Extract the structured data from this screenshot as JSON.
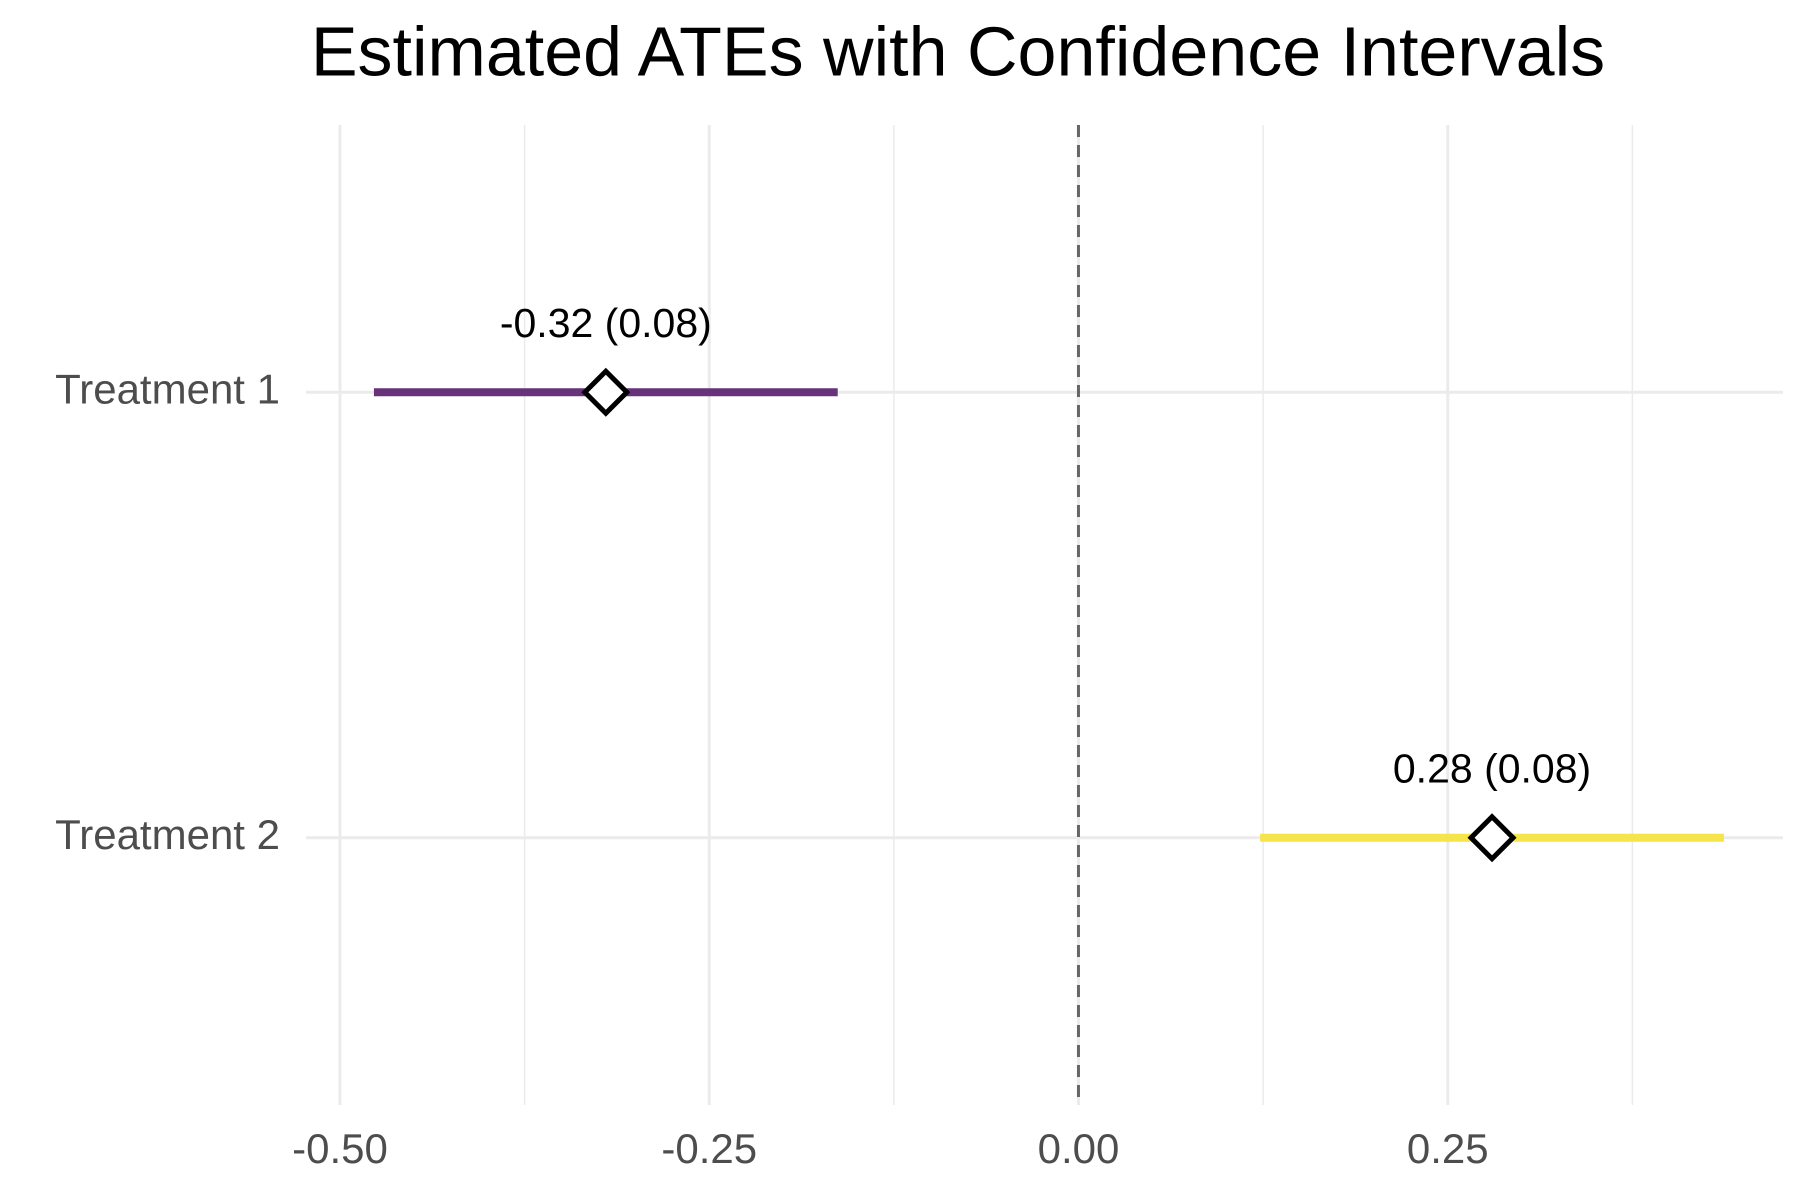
{
  "chart_data": {
    "type": "interval",
    "title": "Estimated ATEs with Confidence Intervals",
    "categories": [
      "Treatment 1",
      "Treatment 2"
    ],
    "values": [
      -0.32,
      0.28
    ],
    "value_labels": [
      "-0.32 (0.08)",
      "0.28 (0.08)"
    ],
    "lower": [
      -0.477,
      0.123
    ],
    "upper": [
      -0.163,
      0.437
    ],
    "colors": [
      "#67327a",
      "#f5e44a"
    ],
    "xlim": [
      -0.523,
      0.477
    ],
    "xticks": [
      {
        "value": -0.5,
        "label": "-0.50"
      },
      {
        "value": -0.25,
        "label": "-0.25"
      },
      {
        "value": 0,
        "label": "0.00"
      },
      {
        "value": 0.25,
        "label": "0.25"
      }
    ],
    "minor_xticks": [
      -0.375,
      -0.125,
      0.125,
      0.375
    ],
    "reference_line": 0,
    "grid": true
  }
}
